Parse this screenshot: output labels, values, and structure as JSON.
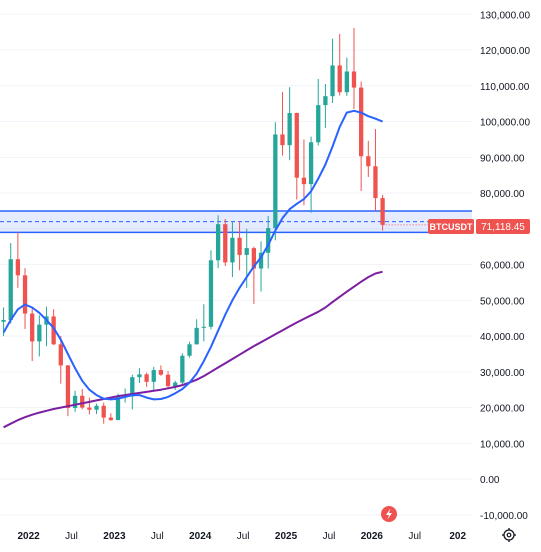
{
  "chart_data": {
    "type": "candlestick",
    "symbol": "BTCUSDT",
    "last_price": "71,118.45",
    "y_axis": {
      "ticks": [
        -10000,
        0,
        10000,
        20000,
        30000,
        40000,
        50000,
        60000,
        70000,
        80000,
        90000,
        100000,
        110000,
        120000,
        130000
      ],
      "tick_labels": [
        "-10,000.00",
        "0.00",
        "10,000.00",
        "20,000.00",
        "30,000.00",
        "40,000.00",
        "50,000.00",
        "60,000.00",
        "70,000.00",
        "80,000.00",
        "90,000.00",
        "100,000.00",
        "110,000.00",
        "120,000.00",
        "130,000.00"
      ],
      "range": [
        -12000,
        134000
      ],
      "position": "right"
    },
    "x_axis": {
      "ticks": [
        "2022-01",
        "2022-07",
        "2023-01",
        "2023-07",
        "2024-01",
        "2024-07",
        "2025-01",
        "2025-07",
        "2026-01",
        "2026-07",
        "2027-01"
      ],
      "tick_labels": [
        "2022",
        "Jul",
        "2023",
        "Jul",
        "2024",
        "Jul",
        "2025",
        "Jul",
        "2026",
        "Jul",
        "202"
      ],
      "range": [
        "2021-09",
        "2027-03"
      ]
    },
    "support_zone": {
      "low": 69000,
      "high": 75000,
      "mid": 72000
    },
    "colors": {
      "up": "#26a69a",
      "down": "#ef5350",
      "ma_short": "#2962ff",
      "ma_long": "#7b1fa2",
      "zone": "#2962ff",
      "price_label": "#ef5350"
    },
    "candles": [
      [
        "2021-09",
        44000,
        48000,
        40000,
        44500
      ],
      [
        "2021-10",
        44500,
        66000,
        43500,
        61500
      ],
      [
        "2021-11",
        61500,
        69000,
        53500,
        57000
      ],
      [
        "2021-12",
        57000,
        59000,
        42000,
        46300
      ],
      [
        "2022-01",
        46300,
        48000,
        33000,
        38500
      ],
      [
        "2022-02",
        38500,
        45800,
        34300,
        43200
      ],
      [
        "2022-03",
        43200,
        48200,
        37200,
        45500
      ],
      [
        "2022-04",
        45500,
        47500,
        37500,
        37700
      ],
      [
        "2022-05",
        37700,
        40000,
        26700,
        31800
      ],
      [
        "2022-06",
        31800,
        31900,
        17600,
        19900
      ],
      [
        "2022-07",
        19900,
        24700,
        18800,
        23300
      ],
      [
        "2022-08",
        23300,
        25200,
        19500,
        20000
      ],
      [
        "2022-09",
        20000,
        22800,
        18100,
        19400
      ],
      [
        "2022-10",
        19400,
        21100,
        18200,
        20500
      ],
      [
        "2022-11",
        20500,
        21400,
        15500,
        17200
      ],
      [
        "2022-12",
        17200,
        18400,
        16300,
        16500
      ],
      [
        "2023-01",
        16500,
        23900,
        16500,
        23100
      ],
      [
        "2023-02",
        23100,
        25300,
        21400,
        23100
      ],
      [
        "2023-03",
        23100,
        29200,
        19500,
        28500
      ],
      [
        "2023-04",
        28500,
        31000,
        26900,
        29300
      ],
      [
        "2023-05",
        29300,
        29800,
        25800,
        27200
      ],
      [
        "2023-06",
        27200,
        31400,
        24800,
        30500
      ],
      [
        "2023-07",
        30500,
        31800,
        28900,
        29200
      ],
      [
        "2023-08",
        29200,
        30200,
        25200,
        26000
      ],
      [
        "2023-09",
        26000,
        27500,
        24900,
        27000
      ],
      [
        "2023-10",
        27000,
        35200,
        26600,
        34500
      ],
      [
        "2023-11",
        34500,
        38400,
        34000,
        37700
      ],
      [
        "2023-12",
        37700,
        44700,
        37600,
        42300
      ],
      [
        "2024-01",
        42300,
        48900,
        38500,
        42600
      ],
      [
        "2024-02",
        42600,
        64000,
        41900,
        61200
      ],
      [
        "2024-03",
        61200,
        73800,
        59000,
        71300
      ],
      [
        "2024-04",
        71300,
        72800,
        59600,
        60600
      ],
      [
        "2024-05",
        60600,
        71900,
        56500,
        67500
      ],
      [
        "2024-06",
        67500,
        72000,
        58400,
        62700
      ],
      [
        "2024-07",
        62700,
        70000,
        53500,
        64600
      ],
      [
        "2024-08",
        64600,
        65000,
        49000,
        58900
      ],
      [
        "2024-09",
        58900,
        66500,
        52500,
        63300
      ],
      [
        "2024-10",
        63300,
        73600,
        58900,
        70200
      ],
      [
        "2024-11",
        70200,
        99800,
        66800,
        96400
      ],
      [
        "2024-12",
        96400,
        108300,
        90500,
        93400
      ],
      [
        "2025-01",
        93400,
        109600,
        89200,
        102400
      ],
      [
        "2025-02",
        102400,
        102500,
        78200,
        84300
      ],
      [
        "2025-03",
        84300,
        95000,
        76600,
        82500
      ],
      [
        "2025-04",
        82500,
        95800,
        74500,
        94200
      ],
      [
        "2025-05",
        94200,
        111900,
        93300,
        104600
      ],
      [
        "2025-06",
        104600,
        110500,
        98200,
        107100
      ],
      [
        "2025-07",
        107100,
        123200,
        105200,
        115700
      ],
      [
        "2025-08",
        115700,
        124500,
        107300,
        108200
      ],
      [
        "2025-09",
        108200,
        117900,
        107200,
        114000
      ],
      [
        "2025-10",
        114000,
        126200,
        103500,
        109500
      ],
      [
        "2025-11",
        109500,
        111200,
        80600,
        90300
      ],
      [
        "2025-12",
        90300,
        94600,
        84500,
        87500
      ],
      [
        "2026-01",
        87500,
        97900,
        75000,
        78600
      ],
      [
        "2026-02",
        78600,
        79500,
        69500,
        71118
      ]
    ],
    "ma_short": [
      [
        "2021-09",
        41000
      ],
      [
        "2021-10",
        44500
      ],
      [
        "2021-11",
        47500
      ],
      [
        "2021-12",
        48800
      ],
      [
        "2022-01",
        48000
      ],
      [
        "2022-02",
        46500
      ],
      [
        "2022-03",
        44500
      ],
      [
        "2022-04",
        42300
      ],
      [
        "2022-05",
        39000
      ],
      [
        "2022-06",
        35000
      ],
      [
        "2022-07",
        31000
      ],
      [
        "2022-08",
        27500
      ],
      [
        "2022-09",
        25000
      ],
      [
        "2022-10",
        23500
      ],
      [
        "2022-11",
        22500
      ],
      [
        "2022-12",
        22300
      ],
      [
        "2023-01",
        22500
      ],
      [
        "2023-02",
        23000
      ],
      [
        "2023-03",
        23500
      ],
      [
        "2023-04",
        23500
      ],
      [
        "2023-05",
        22800
      ],
      [
        "2023-06",
        22300
      ],
      [
        "2023-07",
        22400
      ],
      [
        "2023-08",
        23000
      ],
      [
        "2023-09",
        24000
      ],
      [
        "2023-10",
        25200
      ],
      [
        "2023-11",
        27000
      ],
      [
        "2023-12",
        29500
      ],
      [
        "2024-01",
        33000
      ],
      [
        "2024-02",
        37000
      ],
      [
        "2024-03",
        41500
      ],
      [
        "2024-04",
        46000
      ],
      [
        "2024-05",
        50000
      ],
      [
        "2024-06",
        53500
      ],
      [
        "2024-07",
        56500
      ],
      [
        "2024-08",
        59500
      ],
      [
        "2024-09",
        62000
      ],
      [
        "2024-10",
        65500
      ],
      [
        "2024-11",
        69500
      ],
      [
        "2024-12",
        73000
      ],
      [
        "2025-01",
        75500
      ],
      [
        "2025-02",
        77000
      ],
      [
        "2025-03",
        78300
      ],
      [
        "2025-04",
        80500
      ],
      [
        "2025-05",
        84000
      ],
      [
        "2025-06",
        88000
      ],
      [
        "2025-07",
        93000
      ],
      [
        "2025-08",
        98500
      ],
      [
        "2025-09",
        102500
      ],
      [
        "2025-10",
        103000
      ],
      [
        "2025-11",
        102500
      ],
      [
        "2025-12",
        101500
      ],
      [
        "2026-01",
        100800
      ],
      [
        "2026-02",
        100000
      ]
    ],
    "ma_long": [
      [
        "2021-09",
        14500
      ],
      [
        "2021-10",
        15500
      ],
      [
        "2021-11",
        16500
      ],
      [
        "2021-12",
        17300
      ],
      [
        "2022-01",
        18000
      ],
      [
        "2022-02",
        18600
      ],
      [
        "2022-03",
        19100
      ],
      [
        "2022-04",
        19600
      ],
      [
        "2022-05",
        20000
      ],
      [
        "2022-06",
        20400
      ],
      [
        "2022-07",
        20800
      ],
      [
        "2022-08",
        21200
      ],
      [
        "2022-09",
        21600
      ],
      [
        "2022-10",
        22000
      ],
      [
        "2022-11",
        22400
      ],
      [
        "2022-12",
        22800
      ],
      [
        "2023-01",
        23200
      ],
      [
        "2023-02",
        23500
      ],
      [
        "2023-03",
        23800
      ],
      [
        "2023-04",
        24100
      ],
      [
        "2023-05",
        24400
      ],
      [
        "2023-06",
        24700
      ],
      [
        "2023-07",
        25000
      ],
      [
        "2023-08",
        25400
      ],
      [
        "2023-09",
        25800
      ],
      [
        "2023-10",
        26300
      ],
      [
        "2023-11",
        27000
      ],
      [
        "2023-12",
        27800
      ],
      [
        "2024-01",
        28800
      ],
      [
        "2024-02",
        30000
      ],
      [
        "2024-03",
        31200
      ],
      [
        "2024-04",
        32400
      ],
      [
        "2024-05",
        33600
      ],
      [
        "2024-06",
        34800
      ],
      [
        "2024-07",
        36000
      ],
      [
        "2024-08",
        37200
      ],
      [
        "2024-09",
        38300
      ],
      [
        "2024-10",
        39400
      ],
      [
        "2024-11",
        40500
      ],
      [
        "2024-12",
        41600
      ],
      [
        "2025-01",
        42700
      ],
      [
        "2025-02",
        43800
      ],
      [
        "2025-03",
        44800
      ],
      [
        "2025-04",
        45800
      ],
      [
        "2025-05",
        46800
      ],
      [
        "2025-06",
        48000
      ],
      [
        "2025-07",
        49500
      ],
      [
        "2025-08",
        51000
      ],
      [
        "2025-09",
        52400
      ],
      [
        "2025-10",
        53800
      ],
      [
        "2025-11",
        55200
      ],
      [
        "2025-12",
        56500
      ],
      [
        "2026-01",
        57500
      ],
      [
        "2026-02",
        58000
      ]
    ]
  },
  "ui": {
    "price_label": "71,118.45",
    "symbol_label": "BTCUSDT",
    "event_icon": "lightning-icon",
    "settings_icon": "gear-icon"
  }
}
